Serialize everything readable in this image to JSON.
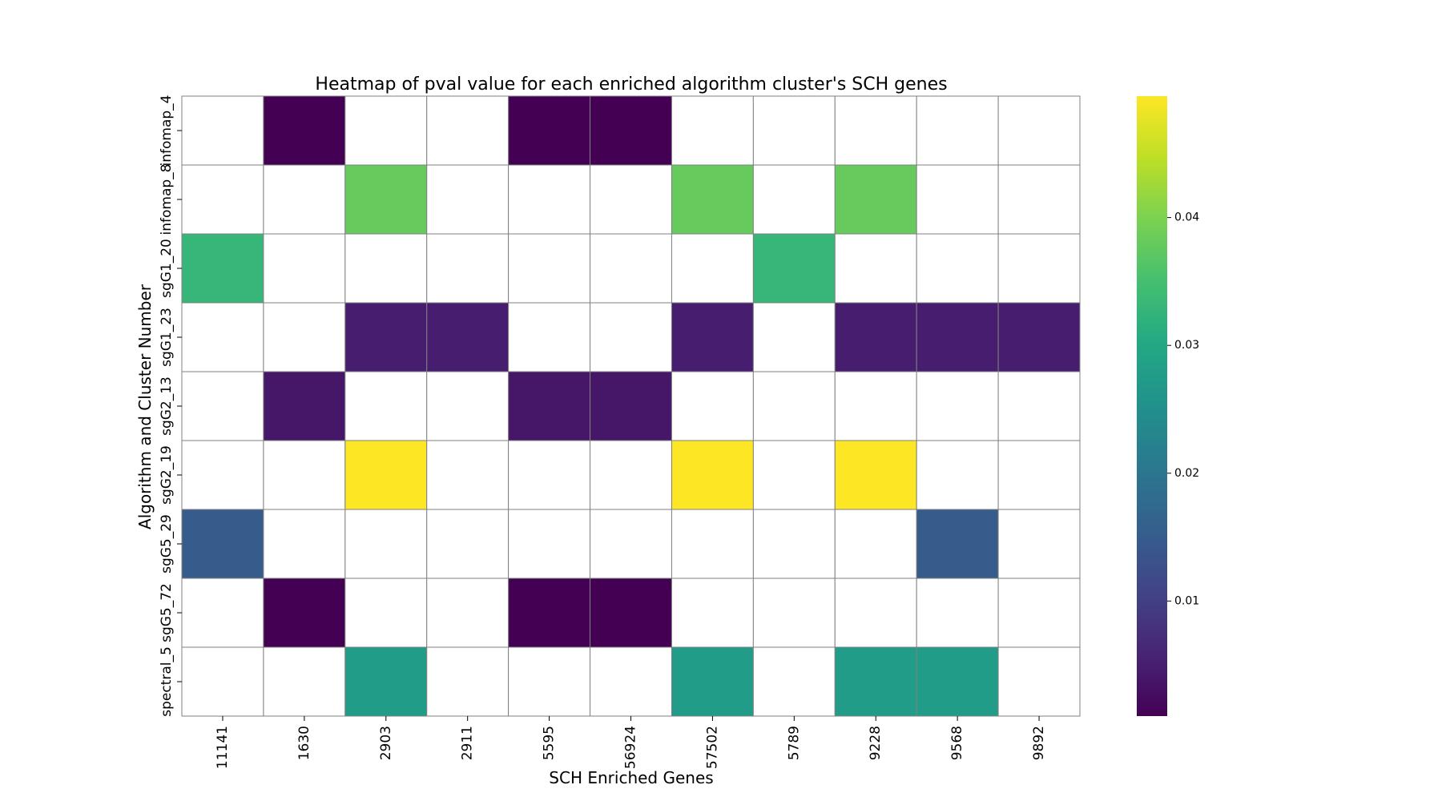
{
  "chart_data": {
    "type": "heatmap",
    "title": "Heatmap of pval value for each enriched algorithm cluster's SCH genes",
    "xlabel": "SCH Enriched Genes",
    "ylabel": "Algorithm and Cluster Number",
    "x_categories": [
      "11141",
      "1630",
      "2903",
      "2911",
      "5595",
      "56924",
      "57502",
      "5789",
      "9228",
      "9568",
      "9892"
    ],
    "y_categories": [
      "infomap_4",
      "infomap_8",
      "sgG1_20",
      "sgG1_23",
      "sgG2_13",
      "sgG2_19",
      "sgG5_29",
      "sgG5_72",
      "spectral_5"
    ],
    "values": [
      [
        null,
        0.001,
        null,
        null,
        0.001,
        0.001,
        null,
        null,
        null,
        null,
        null
      ],
      [
        null,
        null,
        0.038,
        null,
        null,
        null,
        0.038,
        null,
        0.038,
        null,
        null
      ],
      [
        0.033,
        null,
        null,
        null,
        null,
        null,
        null,
        0.033,
        null,
        null,
        null
      ],
      [
        null,
        null,
        0.005,
        0.005,
        null,
        null,
        0.005,
        null,
        0.005,
        0.005,
        0.005
      ],
      [
        null,
        0.004,
        null,
        null,
        0.004,
        0.004,
        null,
        null,
        null,
        null,
        null
      ],
      [
        null,
        null,
        0.0495,
        null,
        null,
        null,
        0.0495,
        null,
        0.0495,
        null,
        null
      ],
      [
        0.015,
        null,
        null,
        null,
        null,
        null,
        null,
        null,
        null,
        0.015,
        null
      ],
      [
        null,
        0.001,
        null,
        null,
        0.001,
        0.001,
        null,
        null,
        null,
        null,
        null
      ],
      [
        null,
        null,
        0.0275,
        null,
        null,
        null,
        0.0275,
        null,
        0.0275,
        0.0275,
        null
      ]
    ],
    "colormap": "viridis",
    "colorbar": {
      "range": [
        0.001,
        0.0495
      ],
      "ticks": [
        0.01,
        0.02,
        0.03,
        0.04
      ],
      "tick_labels": [
        "0.01",
        "0.02",
        "0.03",
        "0.04"
      ]
    },
    "grid": true,
    "grid_color": "#808080",
    "missing_color": "#ffffff"
  }
}
